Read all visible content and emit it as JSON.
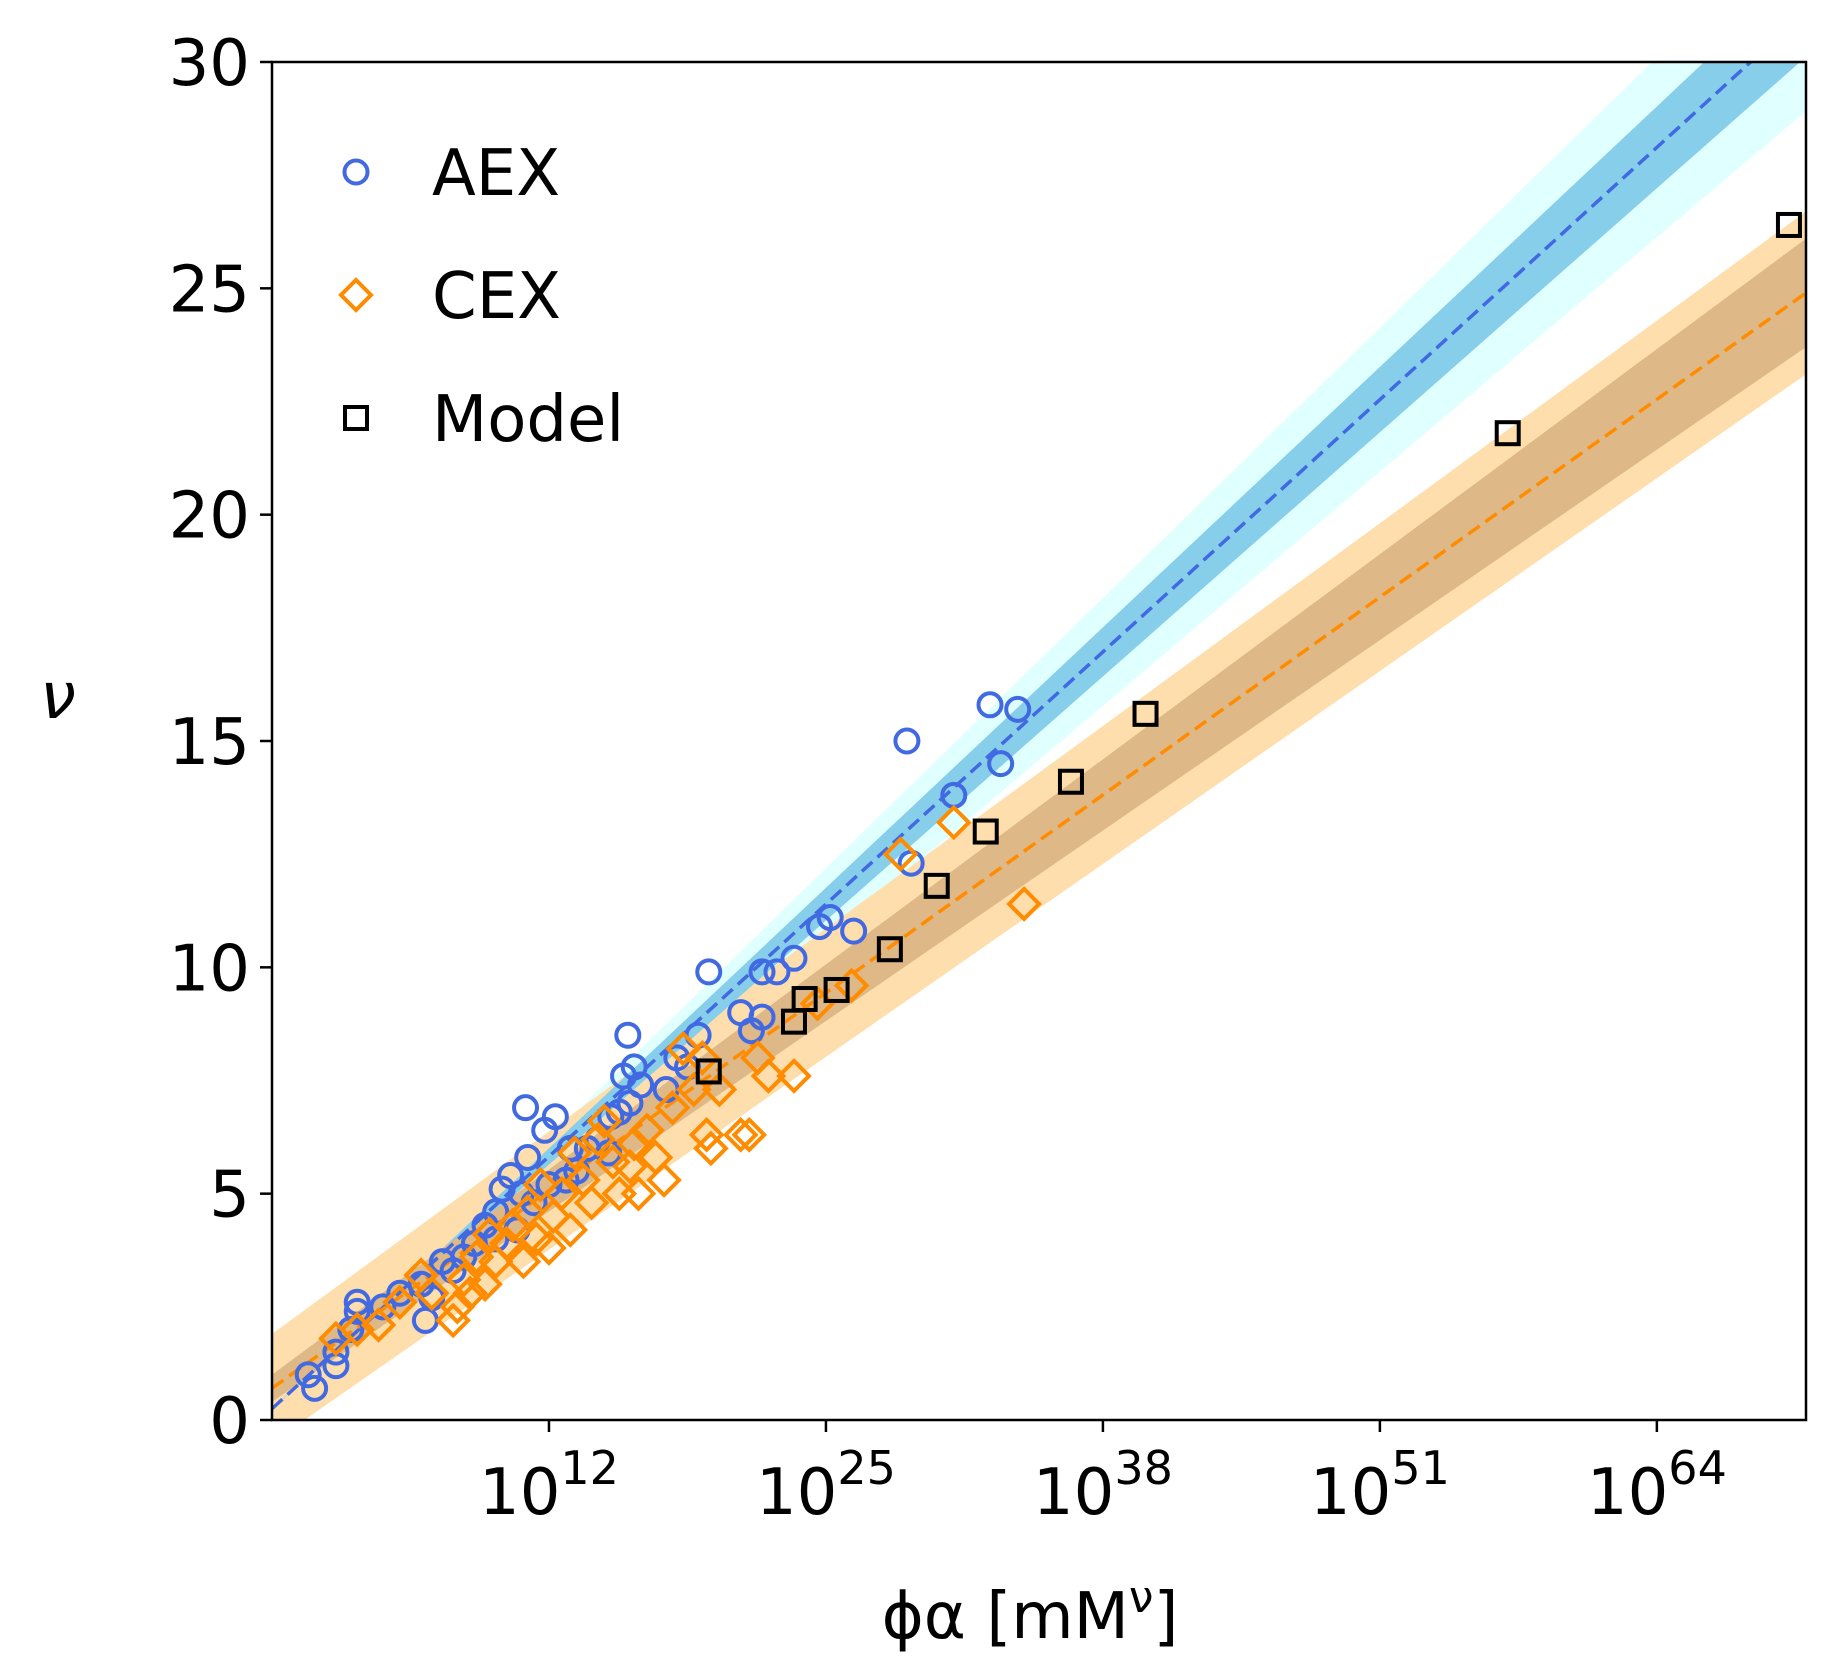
{
  "chart_data": {
    "type": "scatter",
    "x_scale": "log10",
    "xlabel": "ϕα  [mM^ν]",
    "xlabel_parts": {
      "main": "ϕα  [mM",
      "sup": "ν",
      "close": "]"
    },
    "ylabel": "ν",
    "xlim_log10": [
      -1,
      71
    ],
    "ylim": [
      0,
      30
    ],
    "x_ticks": [
      {
        "base": "10",
        "exp": "12",
        "log10": 12
      },
      {
        "base": "10",
        "exp": "25",
        "log10": 25
      },
      {
        "base": "10",
        "exp": "38",
        "log10": 38
      },
      {
        "base": "10",
        "exp": "51",
        "log10": 51
      },
      {
        "base": "10",
        "exp": "64",
        "log10": 64
      }
    ],
    "y_ticks": [
      "0",
      "5",
      "10",
      "15",
      "20",
      "25",
      "30"
    ],
    "legend": {
      "placement": "upper-left",
      "entries": [
        "AEX",
        "CEX",
        "Model"
      ]
    },
    "fits": [
      {
        "series": "AEX",
        "color": "#4169e1",
        "band_inner": "#87ceeb",
        "band_outer": "#e0ffff",
        "line": [
          [
            -1,
            0.25
          ],
          [
            68.4,
            30
          ]
        ],
        "inner_half_width": [
          0.0,
          1.0
        ],
        "outer_half_width": [
          0.0,
          2.2
        ]
      },
      {
        "series": "CEX",
        "color": "#ff8c00",
        "band_inner": "#deb887",
        "band_outer": "#ffdead",
        "line": [
          [
            -1,
            0.7
          ],
          [
            71,
            24.9
          ]
        ],
        "inner_half_width": [
          0.3,
          1.2
        ],
        "outer_half_width": [
          1.2,
          1.8
        ]
      }
    ],
    "series": [
      {
        "name": "AEX",
        "marker": "circle",
        "color": "#4169e1",
        "points": [
          [
            1.0,
            0.7
          ],
          [
            0.7,
            1.0
          ],
          [
            2.0,
            1.2
          ],
          [
            2.0,
            1.5
          ],
          [
            3.0,
            2.4
          ],
          [
            3.0,
            2.6
          ],
          [
            2.7,
            2.0
          ],
          [
            4.2,
            2.5
          ],
          [
            5.0,
            2.8
          ],
          [
            6.0,
            3.0
          ],
          [
            6.2,
            2.2
          ],
          [
            7.0,
            3.5
          ],
          [
            6.5,
            2.7
          ],
          [
            7.5,
            3.3
          ],
          [
            8.0,
            3.6
          ],
          [
            8.5,
            3.9
          ],
          [
            9.0,
            4.3
          ],
          [
            9.5,
            4.0
          ],
          [
            9.5,
            4.6
          ],
          [
            10.2,
            5.4
          ],
          [
            9.8,
            5.1
          ],
          [
            10.7,
            5.0
          ],
          [
            10.5,
            4.2
          ],
          [
            11.3,
            4.8
          ],
          [
            12.0,
            5.2
          ],
          [
            11.0,
            5.8
          ],
          [
            10.9,
            6.9
          ],
          [
            11.8,
            6.4
          ],
          [
            12.3,
            6.7
          ],
          [
            12.8,
            5.3
          ],
          [
            13.0,
            6.0
          ],
          [
            13.8,
            6.0
          ],
          [
            13.3,
            5.5
          ],
          [
            14.3,
            6.2
          ],
          [
            14.9,
            6.7
          ],
          [
            15.3,
            6.8
          ],
          [
            15.8,
            7.0
          ],
          [
            14.8,
            5.9
          ],
          [
            15.5,
            7.6
          ],
          [
            16.0,
            7.8
          ],
          [
            16.3,
            7.4
          ],
          [
            17.5,
            7.3
          ],
          [
            18.0,
            8.0
          ],
          [
            18.5,
            7.8
          ],
          [
            19.0,
            8.5
          ],
          [
            15.7,
            8.5
          ],
          [
            19.5,
            9.9
          ],
          [
            21.0,
            9.0
          ],
          [
            21.5,
            8.6
          ],
          [
            22.0,
            8.9
          ],
          [
            22.0,
            9.9
          ],
          [
            22.7,
            9.9
          ],
          [
            23.5,
            10.2
          ],
          [
            24.7,
            10.9
          ],
          [
            25.2,
            11.1
          ],
          [
            26.3,
            10.8
          ],
          [
            29.0,
            12.3
          ],
          [
            28.8,
            15.0
          ],
          [
            31.0,
            13.8
          ],
          [
            32.7,
            15.8
          ],
          [
            33.2,
            14.5
          ],
          [
            34.0,
            15.7
          ]
        ]
      },
      {
        "name": "CEX",
        "marker": "diamond",
        "color": "#ff8c00",
        "points": [
          [
            2.0,
            1.8
          ],
          [
            3.0,
            2.0
          ],
          [
            4.0,
            2.1
          ],
          [
            5.0,
            2.6
          ],
          [
            6.0,
            3.2
          ],
          [
            6.5,
            2.8
          ],
          [
            7.5,
            2.2
          ],
          [
            7.7,
            2.5
          ],
          [
            8.0,
            3.1
          ],
          [
            8.3,
            2.8
          ],
          [
            8.6,
            3.6
          ],
          [
            9.0,
            3.0
          ],
          [
            9.2,
            4.1
          ],
          [
            9.5,
            3.5
          ],
          [
            10.0,
            3.9
          ],
          [
            10.3,
            4.3
          ],
          [
            10.8,
            3.5
          ],
          [
            11.0,
            4.6
          ],
          [
            11.4,
            4.0
          ],
          [
            11.6,
            5.2
          ],
          [
            12.0,
            3.8
          ],
          [
            12.2,
            4.5
          ],
          [
            12.6,
            5.0
          ],
          [
            13.0,
            4.2
          ],
          [
            13.2,
            5.9
          ],
          [
            13.6,
            5.3
          ],
          [
            14.0,
            4.8
          ],
          [
            14.3,
            6.2
          ],
          [
            14.6,
            6.6
          ],
          [
            15.0,
            5.7
          ],
          [
            15.3,
            5.0
          ],
          [
            15.8,
            5.6
          ],
          [
            16.0,
            6.1
          ],
          [
            16.2,
            5.0
          ],
          [
            16.6,
            6.4
          ],
          [
            17.0,
            5.8
          ],
          [
            17.4,
            5.3
          ],
          [
            17.8,
            6.9
          ],
          [
            18.3,
            8.2
          ],
          [
            18.8,
            7.3
          ],
          [
            19.2,
            8.0
          ],
          [
            19.4,
            6.3
          ],
          [
            19.6,
            6.0
          ],
          [
            20.0,
            7.3
          ],
          [
            21.0,
            6.3
          ],
          [
            21.4,
            6.3
          ],
          [
            21.8,
            8.0
          ],
          [
            22.3,
            7.6
          ],
          [
            23.5,
            7.6
          ],
          [
            24.6,
            9.2
          ],
          [
            26.2,
            9.6
          ],
          [
            28.5,
            12.5
          ],
          [
            31.0,
            13.2
          ],
          [
            34.3,
            11.4
          ]
        ]
      },
      {
        "name": "Model",
        "marker": "square",
        "color": "#000000",
        "points": [
          [
            19.5,
            7.7
          ],
          [
            23.5,
            8.8
          ],
          [
            24.0,
            9.3
          ],
          [
            25.5,
            9.5
          ],
          [
            28.0,
            10.4
          ],
          [
            30.2,
            11.8
          ],
          [
            32.5,
            13.0
          ],
          [
            36.5,
            14.1
          ],
          [
            40.0,
            15.6
          ],
          [
            57.0,
            21.8
          ],
          [
            70.2,
            26.4
          ]
        ]
      }
    ]
  }
}
